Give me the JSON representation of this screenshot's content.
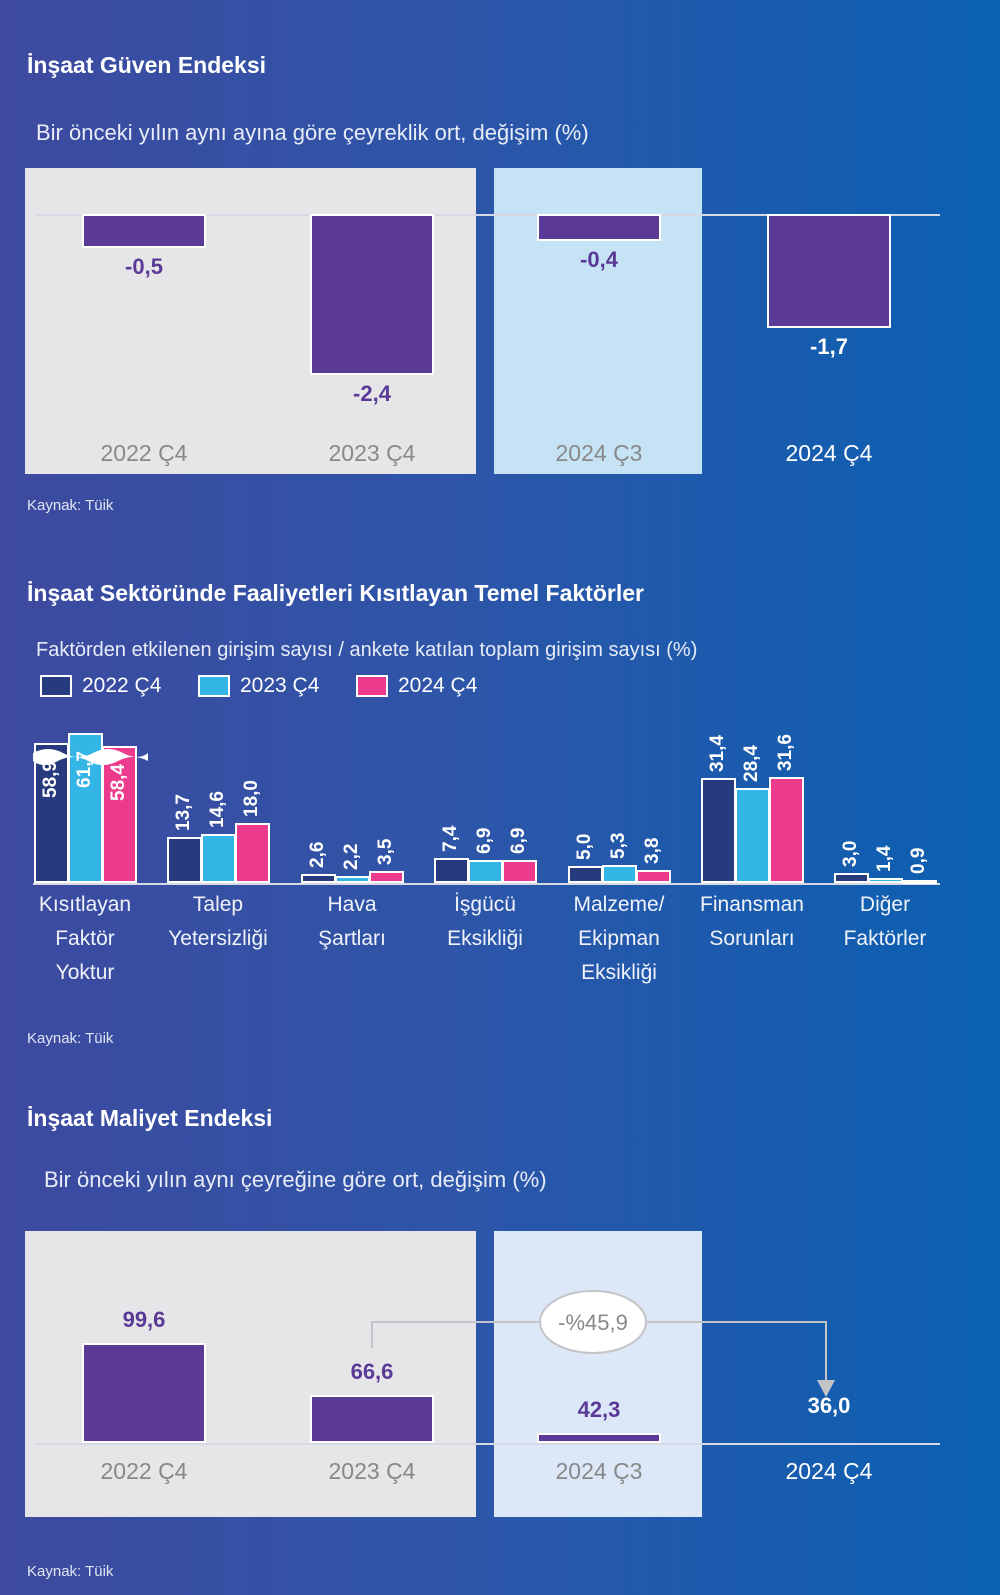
{
  "colors": {
    "purple": "#5a3a96",
    "navy": "#283a7e",
    "cyan": "#33b5e6",
    "pink": "#ec3a8c"
  },
  "chart_data": [
    {
      "type": "bar",
      "title": "İnşaat Güven Endeksi",
      "subtitle": "Bir önceki yılın aynı ayına göre çeyreklik ort, değişim (%)",
      "categories": [
        "2022 Ç4",
        "2023 Ç4",
        "2024 Ç3",
        "2024 Ç4"
      ],
      "values": [
        -0.5,
        -2.4,
        -0.4,
        -1.7
      ],
      "labels": [
        "-0,5",
        "-2,4",
        "-0,4",
        "-1,7"
      ],
      "source": "Kaynak: Tüik"
    },
    {
      "type": "bar",
      "title": "İnşaat Sektöründe Faaliyetleri Kısıtlayan Temel Faktörler",
      "subtitle": "Faktörden etkilenen girişim sayısı / ankete katılan toplam girişim sayısı (%)",
      "legend": [
        "2022 Ç4",
        "2023 Ç4",
        "2024 Ç4"
      ],
      "categories": [
        [
          "Kısıtlayan",
          "Faktör",
          "Yoktur"
        ],
        [
          "Talep",
          "Yetersizliği"
        ],
        [
          "Hava",
          "Şartları"
        ],
        [
          "İşgücü",
          "Eksikliği"
        ],
        [
          "Malzeme/",
          "Ekipman",
          "Eksikliği"
        ],
        [
          "Finansman",
          "Sorunları"
        ],
        [
          "Diğer",
          "Faktörler"
        ]
      ],
      "series": [
        {
          "name": "2022 Ç4",
          "values": [
            58.9,
            13.7,
            2.6,
            7.4,
            5.0,
            31.4,
            3.0
          ],
          "labels": [
            "58,9",
            "13,7",
            "2,6",
            "7,4",
            "5,0",
            "31,4",
            "3,0"
          ]
        },
        {
          "name": "2023 Ç4",
          "values": [
            61.7,
            14.6,
            2.2,
            6.9,
            5.3,
            28.4,
            1.4
          ],
          "labels": [
            "61,7",
            "14,6",
            "2,2",
            "6,9",
            "5,3",
            "28,4",
            "1,4"
          ]
        },
        {
          "name": "2024 Ç4",
          "values": [
            58.4,
            18.0,
            3.5,
            6.9,
            3.8,
            31.6,
            0.9
          ],
          "labels": [
            "58,4",
            "18,0",
            "3,5",
            "6,9",
            "3,8",
            "31,6",
            "0,9"
          ]
        }
      ],
      "source": "Kaynak: Tüik"
    },
    {
      "type": "bar",
      "title": "İnşaat Maliyet Endeksi",
      "subtitle": "Bir önceki yılın aynı çeyreğine göre ort, değişim (%)",
      "categories": [
        "2022 Ç4",
        "2023 Ç4",
        "2024 Ç3",
        "2024 Ç4"
      ],
      "values": [
        99.6,
        66.6,
        42.3,
        36.0
      ],
      "labels": [
        "99,6",
        "66,6",
        "42,3",
        "36,0"
      ],
      "annotation": "-%45,9",
      "source": "Kaynak: Tüik"
    }
  ]
}
